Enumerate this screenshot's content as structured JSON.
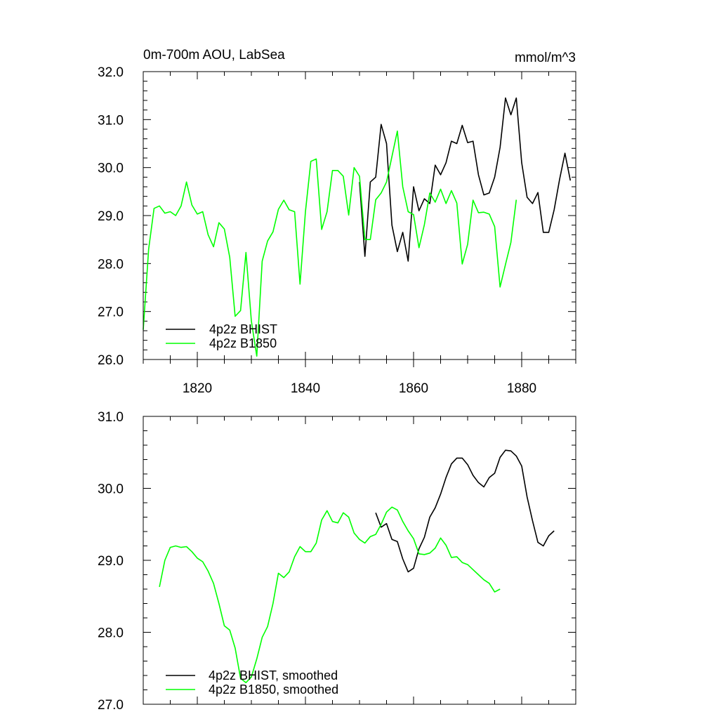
{
  "chart_data": [
    {
      "type": "line",
      "title": "0m-700m AOU, LabSea",
      "units": "mmol/m^3",
      "xlabel": "",
      "ylabel": "",
      "xlim": [
        1810,
        1890
      ],
      "ylim": [
        26.0,
        32.0
      ],
      "xticks": [
        1820,
        1840,
        1860,
        1880
      ],
      "xtick_labels": [
        "1820",
        "1840",
        "1860",
        "1880"
      ],
      "yticks": [
        26.0,
        27.0,
        28.0,
        29.0,
        30.0,
        31.0,
        32.0
      ],
      "ytick_labels": [
        "26.0",
        "27.0",
        "28.0",
        "29.0",
        "30.0",
        "31.0",
        "32.0"
      ],
      "legend_position": "bottom-left",
      "series": [
        {
          "name": "4p2z BHIST",
          "color": "#000000",
          "x": [
            1850,
            1851,
            1852,
            1853,
            1854,
            1855,
            1856,
            1857,
            1858,
            1859,
            1860,
            1861,
            1862,
            1863,
            1864,
            1865,
            1866,
            1867,
            1868,
            1869,
            1870,
            1871,
            1872,
            1873,
            1874,
            1875,
            1876,
            1877,
            1878,
            1879,
            1880,
            1881,
            1882,
            1883,
            1884,
            1885,
            1886,
            1887,
            1888,
            1889
          ],
          "values": [
            29.7,
            28.15,
            29.7,
            29.8,
            30.9,
            30.5,
            28.8,
            28.25,
            28.65,
            28.05,
            29.6,
            29.1,
            29.35,
            29.25,
            30.05,
            29.85,
            30.1,
            30.55,
            30.5,
            30.88,
            30.52,
            30.55,
            29.85,
            29.43,
            29.47,
            29.8,
            30.42,
            31.45,
            31.1,
            31.45,
            30.1,
            29.38,
            29.25,
            29.48,
            28.65,
            28.65,
            29.12,
            29.75,
            30.3,
            29.73
          ]
        },
        {
          "name": "4p2z B1850",
          "color": "#00ff00",
          "x": [
            1810,
            1811,
            1812,
            1813,
            1814,
            1815,
            1816,
            1817,
            1818,
            1819,
            1820,
            1821,
            1822,
            1823,
            1824,
            1825,
            1826,
            1827,
            1828,
            1829,
            1830,
            1831,
            1832,
            1833,
            1834,
            1835,
            1836,
            1837,
            1838,
            1839,
            1840,
            1841,
            1842,
            1843,
            1844,
            1845,
            1846,
            1847,
            1848,
            1849,
            1850,
            1851,
            1852,
            1853,
            1854,
            1855,
            1856,
            1857,
            1858,
            1859,
            1860,
            1861,
            1862,
            1863,
            1864,
            1865,
            1866,
            1867,
            1868,
            1869,
            1870,
            1871,
            1872,
            1873,
            1874,
            1875,
            1876,
            1877,
            1878,
            1879
          ],
          "values": [
            26.62,
            28.3,
            29.15,
            29.2,
            29.05,
            29.08,
            29.0,
            29.2,
            29.7,
            29.22,
            29.03,
            29.08,
            28.6,
            28.35,
            28.85,
            28.72,
            28.13,
            26.9,
            27.02,
            28.23,
            26.8,
            26.07,
            28.05,
            28.47,
            28.66,
            29.13,
            29.32,
            29.12,
            29.08,
            27.57,
            29.08,
            30.13,
            30.18,
            28.71,
            29.08,
            29.94,
            29.94,
            29.82,
            29.01,
            30.0,
            29.82,
            28.5,
            28.5,
            29.33,
            29.47,
            29.7,
            30.23,
            30.76,
            29.6,
            29.08,
            29.02,
            28.33,
            28.81,
            29.47,
            29.28,
            29.55,
            29.25,
            29.52,
            29.26,
            27.99,
            28.4,
            29.32,
            29.06,
            29.07,
            29.03,
            28.77,
            27.51,
            27.98,
            28.44,
            29.33
          ]
        }
      ]
    },
    {
      "type": "line",
      "title": "",
      "xlabel": "",
      "ylabel": "",
      "xlim": [
        1810,
        1890
      ],
      "ylim": [
        27.0,
        31.0
      ],
      "yticks": [
        27.0,
        28.0,
        29.0,
        30.0,
        31.0
      ],
      "ytick_labels": [
        "27.0",
        "28.0",
        "29.0",
        "30.0",
        "31.0"
      ],
      "legend_position": "bottom-left",
      "series": [
        {
          "name": "4p2z BHIST, smoothed",
          "color": "#000000",
          "x": [
            1853,
            1854,
            1855,
            1856,
            1857,
            1858,
            1859,
            1860,
            1861,
            1862,
            1863,
            1864,
            1865,
            1866,
            1867,
            1868,
            1869,
            1870,
            1871,
            1872,
            1873,
            1874,
            1875,
            1876,
            1877,
            1878,
            1879,
            1880,
            1881,
            1882,
            1883,
            1884,
            1885,
            1886
          ],
          "values": [
            29.66,
            29.46,
            29.51,
            29.29,
            29.26,
            29.02,
            28.84,
            28.89,
            29.16,
            29.32,
            29.6,
            29.73,
            29.92,
            30.15,
            30.34,
            30.42,
            30.42,
            30.33,
            30.18,
            30.08,
            30.02,
            30.15,
            30.21,
            30.43,
            30.53,
            30.52,
            30.45,
            30.31,
            29.88,
            29.55,
            29.25,
            29.2,
            29.34,
            29.41
          ]
        },
        {
          "name": "4p2z B1850, smoothed",
          "color": "#00ff00",
          "x": [
            1813,
            1814,
            1815,
            1816,
            1817,
            1818,
            1819,
            1820,
            1821,
            1822,
            1823,
            1824,
            1825,
            1826,
            1827,
            1828,
            1829,
            1830,
            1831,
            1832,
            1833,
            1834,
            1835,
            1836,
            1837,
            1838,
            1839,
            1840,
            1841,
            1842,
            1843,
            1844,
            1845,
            1846,
            1847,
            1848,
            1849,
            1850,
            1851,
            1852,
            1853,
            1854,
            1855,
            1856,
            1857,
            1858,
            1859,
            1860,
            1861,
            1862,
            1863,
            1864,
            1865,
            1866,
            1867,
            1868,
            1869,
            1870,
            1871,
            1872,
            1873,
            1874,
            1875,
            1876
          ],
          "values": [
            28.63,
            29.0,
            29.18,
            29.2,
            29.18,
            29.19,
            29.12,
            29.03,
            28.98,
            28.85,
            28.68,
            28.4,
            28.09,
            28.03,
            27.78,
            27.36,
            27.3,
            27.38,
            27.63,
            27.93,
            28.08,
            28.4,
            28.82,
            28.76,
            28.84,
            29.05,
            29.19,
            29.12,
            29.12,
            29.24,
            29.56,
            29.69,
            29.54,
            29.52,
            29.66,
            29.6,
            29.38,
            29.29,
            29.24,
            29.33,
            29.36,
            29.5,
            29.67,
            29.74,
            29.7,
            29.54,
            29.41,
            29.3,
            29.09,
            29.08,
            29.1,
            29.17,
            29.31,
            29.21,
            29.04,
            29.05,
            28.97,
            28.94,
            28.87,
            28.8,
            28.73,
            28.68,
            28.56,
            28.6
          ]
        }
      ]
    }
  ]
}
